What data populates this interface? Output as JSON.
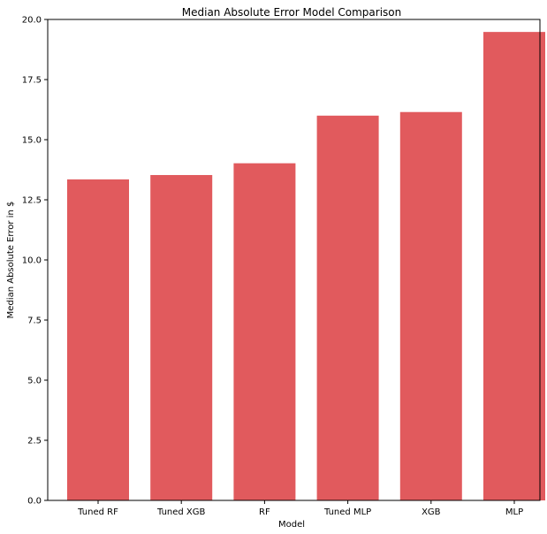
{
  "chart_data": {
    "type": "bar",
    "title": "Median Absolute Error Model Comparison",
    "xlabel": "Model",
    "ylabel": "Median Absolute Error in $",
    "categories": [
      "Tuned RF",
      "Tuned XGB",
      "RF",
      "Tuned MLP",
      "XGB",
      "MLP"
    ],
    "values": [
      13.35,
      13.53,
      14.02,
      16.0,
      16.15,
      19.48
    ],
    "ylim": [
      0,
      20
    ],
    "yticks": [
      0.0,
      2.5,
      5.0,
      7.5,
      10.0,
      12.5,
      15.0,
      17.5,
      20.0
    ],
    "ytick_labels": [
      "0.0",
      "2.5",
      "5.0",
      "7.5",
      "10.0",
      "12.5",
      "15.0",
      "17.5",
      "20.0"
    ],
    "bar_color": "#e15a5d",
    "grid": false,
    "legend": "none"
  }
}
